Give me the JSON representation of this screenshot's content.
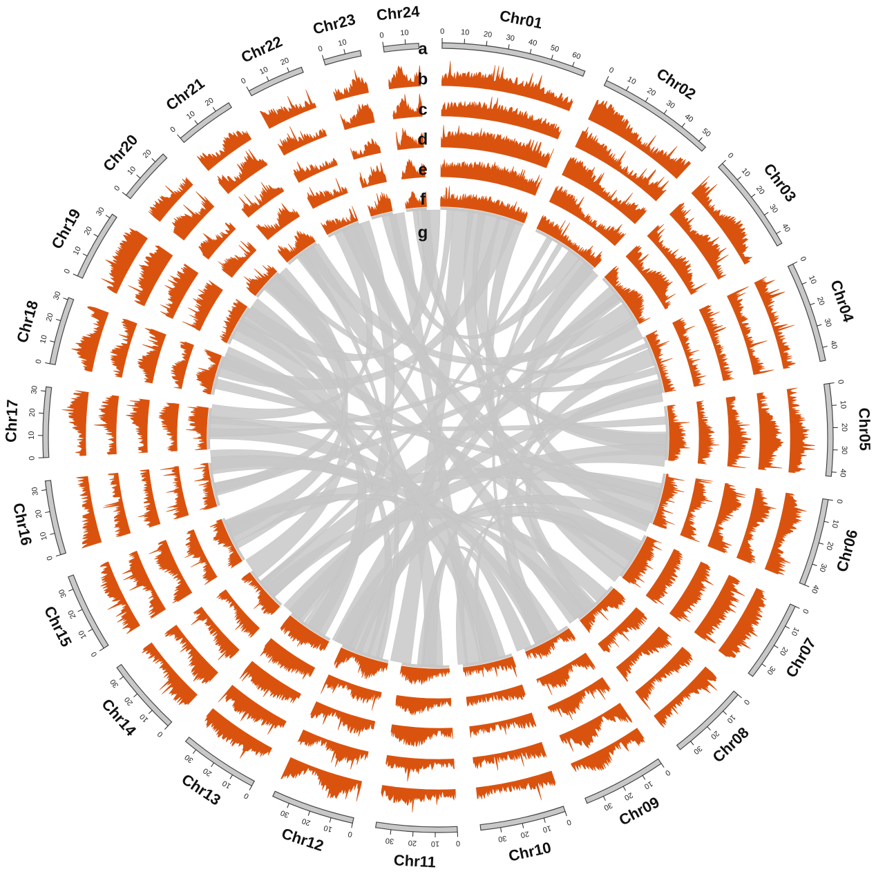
{
  "figure": {
    "type": "circos",
    "colors": {
      "track": "#d9530f",
      "ideogram_fill": "#c8c8c8",
      "ideogram_stroke": "#444444",
      "link": "#c8c8c8"
    },
    "track_letters": [
      "a",
      "b",
      "c",
      "d",
      "e",
      "f",
      "g"
    ],
    "chromosomes": [
      {
        "name": "Chr01",
        "length": 66,
        "ticks": [
          "0",
          "10",
          "20",
          "30",
          "40",
          "50",
          "60"
        ]
      },
      {
        "name": "Chr02",
        "length": 54,
        "ticks": [
          "0",
          "10",
          "20",
          "30",
          "40",
          "50"
        ]
      },
      {
        "name": "Chr03",
        "length": 45,
        "ticks": [
          "0",
          "10",
          "20",
          "30",
          "40"
        ]
      },
      {
        "name": "Chr04",
        "length": 46,
        "ticks": [
          "0",
          "10",
          "20",
          "30",
          "40"
        ]
      },
      {
        "name": "Chr05",
        "length": 42,
        "ticks": [
          "0",
          "10",
          "20",
          "30",
          "40"
        ]
      },
      {
        "name": "Chr06",
        "length": 40,
        "ticks": [
          "0",
          "10",
          "20",
          "30",
          "40"
        ]
      },
      {
        "name": "Chr07",
        "length": 37,
        "ticks": [
          "0",
          "10",
          "20",
          "30"
        ]
      },
      {
        "name": "Chr08",
        "length": 36,
        "ticks": [
          "0",
          "10",
          "20",
          "30"
        ]
      },
      {
        "name": "Chr09",
        "length": 38,
        "ticks": [
          "0",
          "10",
          "20",
          "30"
        ]
      },
      {
        "name": "Chr10",
        "length": 39,
        "ticks": [
          "0",
          "10",
          "20",
          "30"
        ]
      },
      {
        "name": "Chr11",
        "length": 37,
        "ticks": [
          "0",
          "10",
          "20",
          "30"
        ]
      },
      {
        "name": "Chr12",
        "length": 38,
        "ticks": [
          "0",
          "10",
          "20",
          "30"
        ]
      },
      {
        "name": "Chr13",
        "length": 36,
        "ticks": [
          "0",
          "10",
          "20",
          "30"
        ]
      },
      {
        "name": "Chr14",
        "length": 35,
        "ticks": [
          "0",
          "10",
          "20",
          "30"
        ]
      },
      {
        "name": "Chr15",
        "length": 36,
        "ticks": [
          "0",
          "10",
          "20",
          "30"
        ]
      },
      {
        "name": "Chr16",
        "length": 34,
        "ticks": [
          "0",
          "10",
          "20",
          "30"
        ]
      },
      {
        "name": "Chr17",
        "length": 32,
        "ticks": [
          "0",
          "10",
          "20",
          "30"
        ]
      },
      {
        "name": "Chr18",
        "length": 31,
        "ticks": [
          "0",
          "10",
          "20",
          "30"
        ]
      },
      {
        "name": "Chr19",
        "length": 32,
        "ticks": [
          "0",
          "10",
          "20",
          "30"
        ]
      },
      {
        "name": "Chr20",
        "length": 25,
        "ticks": [
          "0",
          "10",
          "20"
        ]
      },
      {
        "name": "Chr21",
        "length": 27,
        "ticks": [
          "0",
          "10",
          "20"
        ]
      },
      {
        "name": "Chr22",
        "length": 26,
        "ticks": [
          "0",
          "10",
          "20"
        ]
      },
      {
        "name": "Chr23",
        "length": 17,
        "ticks": [
          "0",
          "10"
        ]
      },
      {
        "name": "Chr24",
        "length": 16,
        "ticks": [
          "0",
          "10"
        ]
      }
    ],
    "links": [
      [
        0,
        10,
        10,
        30
      ],
      [
        0,
        30,
        4,
        20
      ],
      [
        0,
        45,
        17,
        15
      ],
      [
        0,
        55,
        7,
        20
      ],
      [
        1,
        10,
        13,
        20
      ],
      [
        1,
        30,
        22,
        8
      ],
      [
        1,
        45,
        5,
        25
      ],
      [
        2,
        8,
        11,
        15
      ],
      [
        2,
        25,
        20,
        15
      ],
      [
        2,
        38,
        15,
        10
      ],
      [
        3,
        10,
        8,
        15
      ],
      [
        3,
        25,
        19,
        20
      ],
      [
        3,
        38,
        12,
        25
      ],
      [
        4,
        8,
        16,
        20
      ],
      [
        4,
        22,
        23,
        8
      ],
      [
        4,
        35,
        9,
        20
      ],
      [
        5,
        8,
        14,
        15
      ],
      [
        5,
        20,
        2,
        18
      ],
      [
        5,
        32,
        21,
        12
      ],
      [
        6,
        5,
        11,
        28
      ],
      [
        6,
        20,
        18,
        12
      ],
      [
        6,
        30,
        0,
        22
      ],
      [
        7,
        5,
        13,
        8
      ],
      [
        7,
        18,
        3,
        35
      ],
      [
        7,
        28,
        20,
        8
      ],
      [
        8,
        8,
        16,
        8
      ],
      [
        8,
        22,
        1,
        20
      ],
      [
        8,
        32,
        10,
        10
      ],
      [
        9,
        10,
        15,
        28
      ],
      [
        9,
        25,
        22,
        14
      ],
      [
        9,
        35,
        6,
        12
      ],
      [
        10,
        5,
        19,
        10
      ],
      [
        10,
        20,
        3,
        40
      ],
      [
        11,
        8,
        17,
        25
      ],
      [
        11,
        22,
        5,
        35
      ],
      [
        11,
        32,
        1,
        40
      ],
      [
        12,
        10,
        21,
        20
      ],
      [
        12,
        28,
        4,
        30
      ],
      [
        13,
        8,
        2,
        40
      ],
      [
        13,
        28,
        18,
        25
      ],
      [
        14,
        10,
        0,
        5
      ],
      [
        14,
        25,
        7,
        30
      ],
      [
        15,
        8,
        19,
        28
      ],
      [
        15,
        25,
        8,
        15
      ],
      [
        16,
        10,
        2,
        15
      ],
      [
        16,
        25,
        21,
        5
      ],
      [
        17,
        5,
        5,
        12
      ],
      [
        17,
        22,
        9,
        5
      ],
      [
        18,
        5,
        12,
        5
      ],
      [
        18,
        20,
        23,
        12
      ],
      [
        19,
        8,
        14,
        20
      ],
      [
        20,
        10,
        11,
        5
      ],
      [
        21,
        12,
        6,
        8
      ],
      [
        23,
        5,
        3,
        5
      ]
    ]
  }
}
